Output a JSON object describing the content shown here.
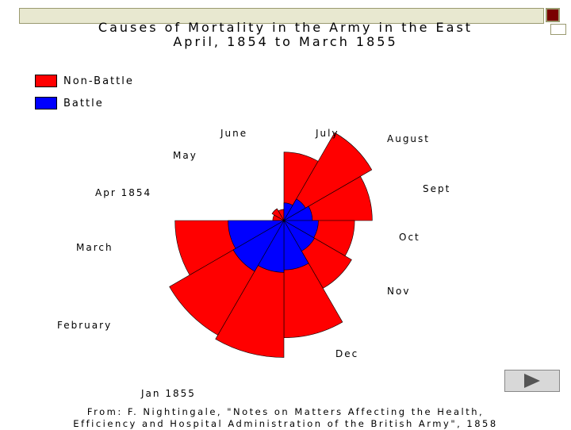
{
  "title_line1": "Causes of Mortality in the Army in the East",
  "title_line2": "April, 1854 to March 1855",
  "legend": [
    {
      "label": "Non-Battle",
      "color": "#ff0000"
    },
    {
      "label": "Battle",
      "color": "#0000ff"
    }
  ],
  "source_line1": "From: F. Nightingale, \"Notes on Matters Affecting the Health,",
  "source_line2": "Efficiency and Hospital Administration of the British Army\", 1858",
  "colors": {
    "non_battle": "#ff0000",
    "battle": "#0000ff",
    "outline": "#000000"
  },
  "icons": {
    "next": "play-arrow-icon"
  },
  "chart_data": {
    "type": "polar-area",
    "categories": [
      "Apr 1854",
      "May",
      "June",
      "July",
      "August",
      "Sept",
      "Oct",
      "Nov",
      "Dec",
      "Jan 1855",
      "February",
      "March"
    ],
    "series": [
      {
        "name": "Non-Battle",
        "values": [
          0.2,
          0.3,
          0.2,
          7.5,
          16.5,
          12.5,
          8.0,
          9.8,
          22.0,
          30.0,
          28.0,
          19.0
        ]
      },
      {
        "name": "Battle",
        "values": [
          0,
          0,
          0,
          0.5,
          1.0,
          1.3,
          1.9,
          2.0,
          3.9,
          4.3,
          5.5,
          5.0
        ]
      }
    ]
  }
}
